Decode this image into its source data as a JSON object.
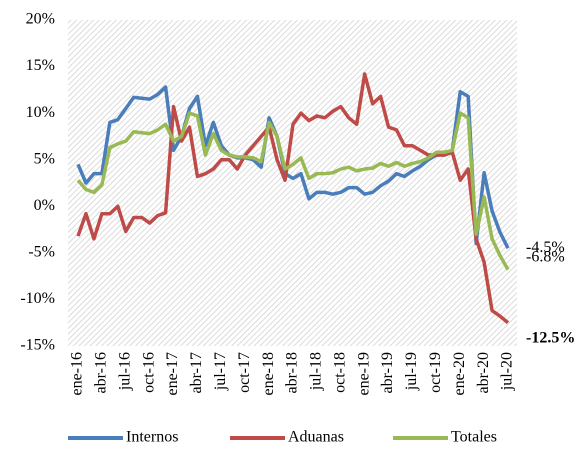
{
  "chart_data": {
    "type": "line",
    "categories": [
      "ene-16",
      null,
      null,
      "abr-16",
      null,
      null,
      "jul-16",
      null,
      null,
      "oct-16",
      null,
      null,
      "ene-17",
      null,
      null,
      "abr-17",
      null,
      null,
      "jul-17",
      null,
      null,
      "oct-17",
      null,
      null,
      "ene-18",
      null,
      null,
      "abr-18",
      null,
      null,
      "jul-18",
      null,
      null,
      "oct-18",
      null,
      null,
      "ene-19",
      null,
      null,
      "abr-19",
      null,
      null,
      "jul-19",
      null,
      null,
      "oct-19",
      null,
      null,
      "ene-20",
      null,
      null,
      "abr-20",
      null,
      null,
      "jul-20"
    ],
    "series": [
      {
        "name": "Internos",
        "color": "#4a7ebb",
        "end_label": "-4.5%",
        "values": [
          4.5,
          2.5,
          3.5,
          3.5,
          9,
          9.3,
          10.5,
          11.7,
          11.6,
          11.5,
          12,
          12.8,
          6,
          7.5,
          10.5,
          11.8,
          6.5,
          9,
          6.5,
          5.5,
          5.2,
          5.2,
          5,
          4.2,
          9.5,
          7.5,
          3.5,
          3,
          3.5,
          0.8,
          1.5,
          1.5,
          1.3,
          1.5,
          2,
          2,
          1.3,
          1.5,
          2.2,
          2.7,
          3.5,
          3.2,
          3.8,
          4.3,
          5,
          5.5,
          5.5,
          6,
          12.3,
          11.8,
          -4,
          3.6,
          -0.5,
          -2.8,
          -4.5
        ]
      },
      {
        "name": "Aduanas",
        "color": "#be4b48",
        "end_label": "-12.5%",
        "values": [
          -3.2,
          -0.8,
          -3.5,
          -0.8,
          -0.8,
          0,
          -2.7,
          -1.2,
          -1.2,
          -1.8,
          -1,
          -0.7,
          10.7,
          7,
          8.5,
          3.2,
          3.5,
          4,
          5,
          5,
          4,
          5.5,
          6.5,
          7.5,
          8.5,
          5,
          2.8,
          8.8,
          10,
          9.2,
          9.7,
          9.5,
          10.2,
          10.7,
          9.5,
          8.8,
          14.2,
          11,
          11.8,
          8.5,
          8.2,
          6.5,
          6.5,
          6,
          5.5,
          5.5,
          5.5,
          5.8,
          2.8,
          4,
          -3.5,
          -6,
          -11.2,
          -11.8,
          -12.5
        ]
      },
      {
        "name": "Totales",
        "color": "#98b954",
        "end_label": "-6.8%",
        "values": [
          2.8,
          1.8,
          1.5,
          2.3,
          6.3,
          6.7,
          7,
          8,
          7.9,
          7.8,
          8.2,
          8.8,
          7,
          7.5,
          10,
          9.7,
          5.5,
          7.8,
          6,
          5.5,
          5.3,
          5.3,
          5.2,
          4.8,
          9,
          7.5,
          4,
          4.5,
          5.2,
          3,
          3.5,
          3.5,
          3.6,
          4,
          4.2,
          3.8,
          4,
          4.1,
          4.6,
          4.3,
          4.7,
          4.3,
          4.6,
          4.8,
          5.2,
          5.8,
          5.8,
          6,
          10,
          9.5,
          -3,
          1,
          -3.5,
          -5.3,
          -6.8
        ]
      }
    ],
    "ylim": [
      -15,
      20
    ],
    "yticks": [
      {
        "value": -15,
        "label": "-15%"
      },
      {
        "value": -10,
        "label": "-10%"
      },
      {
        "value": -5,
        "label": "-5%"
      },
      {
        "value": 0,
        "label": "0%"
      },
      {
        "value": 5,
        "label": "5%"
      },
      {
        "value": 10,
        "label": "10%"
      },
      {
        "value": 15,
        "label": "15%"
      },
      {
        "value": 20,
        "label": "20%"
      }
    ],
    "grid": true,
    "legend": "bottom"
  }
}
